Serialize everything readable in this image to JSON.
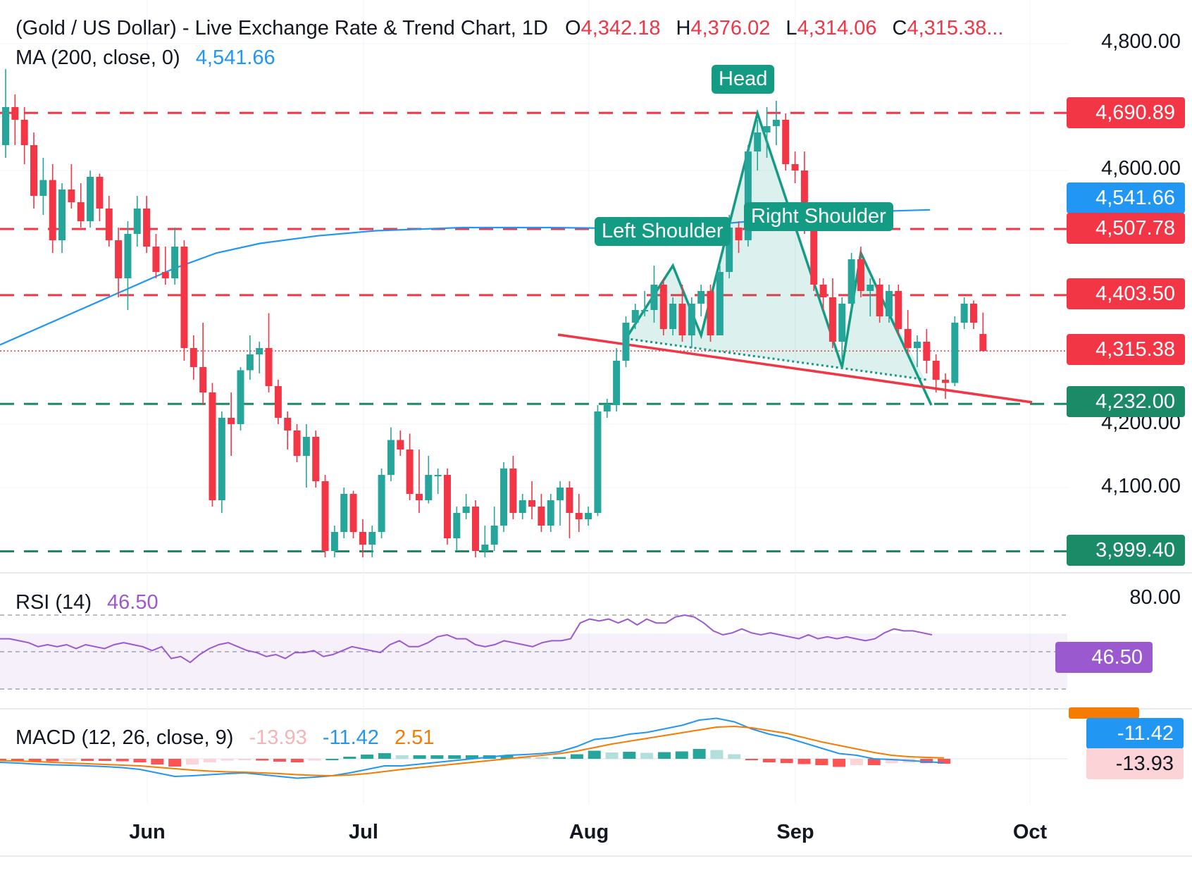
{
  "header": {
    "title": "(Gold / US Dollar) - Live Exchange Rate & Trend Chart, 1D",
    "o_label": "O",
    "o_value": "4,342.18",
    "h_label": "H",
    "h_value": "4,376.02",
    "l_label": "L",
    "l_value": "4,314.06",
    "c_label": "C",
    "c_value": "4,315.38..."
  },
  "ma": {
    "label": "MA (200, close, 0)",
    "value": "4,541.66"
  },
  "rsi": {
    "label": "RSI (14)",
    "value": "46.50",
    "tick": "80.00",
    "tag": "46.50"
  },
  "macd": {
    "label": "MACD (12, 26, close, 9)",
    "hist": "-13.93",
    "macd": "-11.42",
    "signal": "2.51",
    "tag_macd": "-11.42",
    "tag_hist": "-13.93"
  },
  "price_axis": [
    "4,800.00",
    "4,600.00",
    "4,200.00",
    "4,100.00"
  ],
  "level_tags": [
    {
      "value": "4,690.89",
      "kind": "resistance"
    },
    {
      "value": "4,541.66",
      "kind": "ma"
    },
    {
      "value": "4,507.78",
      "kind": "resistance"
    },
    {
      "value": "4,403.50",
      "kind": "resistance"
    },
    {
      "value": "4,315.38",
      "kind": "last"
    },
    {
      "value": "4,232.00",
      "kind": "support"
    },
    {
      "value": "3,999.40",
      "kind": "support"
    }
  ],
  "months": [
    "Jun",
    "Jul",
    "Aug",
    "Sep",
    "Oct"
  ],
  "pattern_labels": {
    "head": "Head",
    "left": "Left Shoulder",
    "right": "Right Shoulder"
  },
  "colors": {
    "up": "#26a69a",
    "down": "#f23645",
    "ma": "#2196f3",
    "rsi": "#9b59d0",
    "signal": "#f57c00",
    "pattern": "#149b84"
  },
  "chart_data": {
    "type": "candlestick",
    "symbol": "Gold / US Dollar",
    "timeframe": "1D",
    "ylim": [
      3985,
      4835
    ],
    "horizontal_levels": [
      4690.89,
      4507.78,
      4403.5,
      4232.0,
      3999.4
    ],
    "ma200": [
      [
        0,
        4325
      ],
      [
        20,
        4365
      ],
      [
        40,
        4405
      ],
      [
        60,
        4445
      ],
      [
        75,
        4470
      ],
      [
        90,
        4485
      ],
      [
        110,
        4497
      ],
      [
        130,
        4505
      ],
      [
        160,
        4510
      ],
      [
        190,
        4510
      ],
      [
        210,
        4509
      ],
      [
        225,
        4509
      ],
      [
        240,
        4512
      ],
      [
        260,
        4520
      ],
      [
        280,
        4530
      ],
      [
        300,
        4535
      ],
      [
        322,
        4538
      ]
    ],
    "candles": [
      {
        "o": 4640,
        "h": 4760,
        "l": 4620,
        "c": 4700
      },
      {
        "o": 4700,
        "h": 4720,
        "l": 4640,
        "c": 4680
      },
      {
        "o": 4680,
        "h": 4700,
        "l": 4610,
        "c": 4640
      },
      {
        "o": 4640,
        "h": 4660,
        "l": 4540,
        "c": 4560
      },
      {
        "o": 4560,
        "h": 4620,
        "l": 4530,
        "c": 4585
      },
      {
        "o": 4585,
        "h": 4610,
        "l": 4470,
        "c": 4490
      },
      {
        "o": 4490,
        "h": 4580,
        "l": 4470,
        "c": 4570
      },
      {
        "o": 4570,
        "h": 4610,
        "l": 4540,
        "c": 4550
      },
      {
        "o": 4550,
        "h": 4580,
        "l": 4510,
        "c": 4520
      },
      {
        "o": 4520,
        "h": 4600,
        "l": 4510,
        "c": 4590
      },
      {
        "o": 4590,
        "h": 4595,
        "l": 4520,
        "c": 4540
      },
      {
        "o": 4540,
        "h": 4560,
        "l": 4480,
        "c": 4490
      },
      {
        "o": 4490,
        "h": 4510,
        "l": 4400,
        "c": 4430
      },
      {
        "o": 4430,
        "h": 4520,
        "l": 4380,
        "c": 4500
      },
      {
        "o": 4500,
        "h": 4560,
        "l": 4480,
        "c": 4540
      },
      {
        "o": 4540,
        "h": 4560,
        "l": 4470,
        "c": 4480
      },
      {
        "o": 4480,
        "h": 4500,
        "l": 4430,
        "c": 4440
      },
      {
        "o": 4440,
        "h": 4480,
        "l": 4420,
        "c": 4430
      },
      {
        "o": 4430,
        "h": 4510,
        "l": 4420,
        "c": 4480
      },
      {
        "o": 4480,
        "h": 4490,
        "l": 4300,
        "c": 4320
      },
      {
        "o": 4320,
        "h": 4340,
        "l": 4270,
        "c": 4290
      },
      {
        "o": 4290,
        "h": 4360,
        "l": 4230,
        "c": 4250
      },
      {
        "o": 4250,
        "h": 4265,
        "l": 4070,
        "c": 4080
      },
      {
        "o": 4080,
        "h": 4220,
        "l": 4060,
        "c": 4210
      },
      {
        "o": 4210,
        "h": 4250,
        "l": 4150,
        "c": 4200
      },
      {
        "o": 4200,
        "h": 4290,
        "l": 4190,
        "c": 4285
      },
      {
        "o": 4285,
        "h": 4340,
        "l": 4270,
        "c": 4310
      },
      {
        "o": 4310,
        "h": 4330,
        "l": 4280,
        "c": 4320
      },
      {
        "o": 4320,
        "h": 4375,
        "l": 4250,
        "c": 4260
      },
      {
        "o": 4260,
        "h": 4270,
        "l": 4200,
        "c": 4210
      },
      {
        "o": 4210,
        "h": 4220,
        "l": 4160,
        "c": 4190
      },
      {
        "o": 4190,
        "h": 4200,
        "l": 4140,
        "c": 4150
      },
      {
        "o": 4150,
        "h": 4200,
        "l": 4100,
        "c": 4180
      },
      {
        "o": 4180,
        "h": 4190,
        "l": 4100,
        "c": 4110
      },
      {
        "o": 4110,
        "h": 4120,
        "l": 3990,
        "c": 4000
      },
      {
        "o": 4000,
        "h": 4040,
        "l": 3990,
        "c": 4030
      },
      {
        "o": 4030,
        "h": 4100,
        "l": 4020,
        "c": 4090
      },
      {
        "o": 4090,
        "h": 4095,
        "l": 4020,
        "c": 4030
      },
      {
        "o": 4030,
        "h": 4050,
        "l": 3990,
        "c": 4010
      },
      {
        "o": 4010,
        "h": 4040,
        "l": 3990,
        "c": 4030
      },
      {
        "o": 4030,
        "h": 4130,
        "l": 4020,
        "c": 4120
      },
      {
        "o": 4120,
        "h": 4195,
        "l": 4110,
        "c": 4175
      },
      {
        "o": 4175,
        "h": 4190,
        "l": 4150,
        "c": 4160
      },
      {
        "o": 4160,
        "h": 4185,
        "l": 4080,
        "c": 4090
      },
      {
        "o": 4090,
        "h": 4160,
        "l": 4060,
        "c": 4080
      },
      {
        "o": 4080,
        "h": 4150,
        "l": 4075,
        "c": 4120
      },
      {
        "o": 4120,
        "h": 4130,
        "l": 4090,
        "c": 4120
      },
      {
        "o": 4120,
        "h": 4130,
        "l": 4010,
        "c": 4020
      },
      {
        "o": 4020,
        "h": 4070,
        "l": 4000,
        "c": 4060
      },
      {
        "o": 4060,
        "h": 4090,
        "l": 4050,
        "c": 4070
      },
      {
        "o": 4070,
        "h": 4080,
        "l": 3990,
        "c": 4000
      },
      {
        "o": 4000,
        "h": 4040,
        "l": 3990,
        "c": 4010
      },
      {
        "o": 4010,
        "h": 4070,
        "l": 4000,
        "c": 4040
      },
      {
        "o": 4040,
        "h": 4140,
        "l": 4030,
        "c": 4130
      },
      {
        "o": 4130,
        "h": 4150,
        "l": 4050,
        "c": 4060
      },
      {
        "o": 4060,
        "h": 4090,
        "l": 4050,
        "c": 4080
      },
      {
        "o": 4080,
        "h": 4110,
        "l": 4050,
        "c": 4070
      },
      {
        "o": 4070,
        "h": 4090,
        "l": 4030,
        "c": 4040
      },
      {
        "o": 4040,
        "h": 4090,
        "l": 4030,
        "c": 4080
      },
      {
        "o": 4080,
        "h": 4110,
        "l": 4040,
        "c": 4100
      },
      {
        "o": 4100,
        "h": 4110,
        "l": 4020,
        "c": 4060
      },
      {
        "o": 4060,
        "h": 4090,
        "l": 4030,
        "c": 4050
      },
      {
        "o": 4050,
        "h": 4070,
        "l": 4040,
        "c": 4060
      },
      {
        "o": 4060,
        "h": 4230,
        "l": 4055,
        "c": 4220
      },
      {
        "o": 4220,
        "h": 4240,
        "l": 4210,
        "c": 4230
      },
      {
        "o": 4230,
        "h": 4320,
        "l": 4220,
        "c": 4300
      },
      {
        "o": 4300,
        "h": 4370,
        "l": 4290,
        "c": 4360
      },
      {
        "o": 4360,
        "h": 4390,
        "l": 4350,
        "c": 4380
      },
      {
        "o": 4380,
        "h": 4410,
        "l": 4370,
        "c": 4380
      },
      {
        "o": 4380,
        "h": 4450,
        "l": 4360,
        "c": 4420
      },
      {
        "o": 4420,
        "h": 4430,
        "l": 4340,
        "c": 4350
      },
      {
        "o": 4350,
        "h": 4400,
        "l": 4340,
        "c": 4390
      },
      {
        "o": 4390,
        "h": 4420,
        "l": 4330,
        "c": 4340
      },
      {
        "o": 4340,
        "h": 4400,
        "l": 4320,
        "c": 4390
      },
      {
        "o": 4390,
        "h": 4420,
        "l": 4370,
        "c": 4410
      },
      {
        "o": 4410,
        "h": 4420,
        "l": 4330,
        "c": 4340
      },
      {
        "o": 4340,
        "h": 4450,
        "l": 4340,
        "c": 4440
      },
      {
        "o": 4440,
        "h": 4530,
        "l": 4430,
        "c": 4510
      },
      {
        "o": 4510,
        "h": 4520,
        "l": 4470,
        "c": 4490
      },
      {
        "o": 4490,
        "h": 4640,
        "l": 4480,
        "c": 4630
      },
      {
        "o": 4630,
        "h": 4680,
        "l": 4600,
        "c": 4660
      },
      {
        "o": 4660,
        "h": 4700,
        "l": 4620,
        "c": 4670
      },
      {
        "o": 4670,
        "h": 4710,
        "l": 4640,
        "c": 4680
      },
      {
        "o": 4680,
        "h": 4690,
        "l": 4600,
        "c": 4610
      },
      {
        "o": 4610,
        "h": 4630,
        "l": 4580,
        "c": 4600
      },
      {
        "o": 4600,
        "h": 4630,
        "l": 4500,
        "c": 4510
      },
      {
        "o": 4510,
        "h": 4520,
        "l": 4410,
        "c": 4420
      },
      {
        "o": 4420,
        "h": 4430,
        "l": 4380,
        "c": 4400
      },
      {
        "o": 4400,
        "h": 4430,
        "l": 4320,
        "c": 4330
      },
      {
        "o": 4330,
        "h": 4400,
        "l": 4300,
        "c": 4390
      },
      {
        "o": 4390,
        "h": 4470,
        "l": 4380,
        "c": 4460
      },
      {
        "o": 4460,
        "h": 4480,
        "l": 4400,
        "c": 4410
      },
      {
        "o": 4410,
        "h": 4430,
        "l": 4370,
        "c": 4420
      },
      {
        "o": 4420,
        "h": 4430,
        "l": 4360,
        "c": 4370
      },
      {
        "o": 4370,
        "h": 4420,
        "l": 4360,
        "c": 4410
      },
      {
        "o": 4410,
        "h": 4420,
        "l": 4340,
        "c": 4350
      },
      {
        "o": 4350,
        "h": 4380,
        "l": 4310,
        "c": 4320
      },
      {
        "o": 4320,
        "h": 4340,
        "l": 4290,
        "c": 4330
      },
      {
        "o": 4330,
        "h": 4350,
        "l": 4280,
        "c": 4300
      },
      {
        "o": 4300,
        "h": 4310,
        "l": 4250,
        "c": 4270
      },
      {
        "o": 4270,
        "h": 4280,
        "l": 4240,
        "c": 4265
      },
      {
        "o": 4265,
        "h": 4370,
        "l": 4260,
        "c": 4360
      },
      {
        "o": 4360,
        "h": 4400,
        "l": 4350,
        "c": 4390
      },
      {
        "o": 4390,
        "h": 4395,
        "l": 4350,
        "c": 4360
      },
      {
        "o": 4342.18,
        "h": 4376.02,
        "l": 4314.06,
        "c": 4315.38
      }
    ],
    "rsi": [
      64,
      64,
      63,
      62,
      60,
      61,
      60,
      61,
      59,
      61,
      60,
      59,
      61,
      62,
      61,
      60,
      58,
      60,
      54,
      55,
      52,
      56,
      59,
      61,
      62,
      60,
      58,
      57,
      55,
      56,
      54,
      57,
      57,
      58,
      55,
      56,
      58,
      60,
      59,
      58,
      57,
      61,
      63,
      60,
      60,
      62,
      65,
      66,
      64,
      64,
      61,
      60,
      61,
      63,
      62,
      61,
      60,
      62,
      63,
      63,
      64,
      72,
      74,
      73,
      74,
      72,
      74,
      71,
      74,
      72,
      72,
      75,
      76,
      75,
      72,
      68,
      66,
      67,
      69,
      67,
      66,
      67,
      66,
      65,
      64,
      66,
      64,
      65,
      64,
      65,
      64,
      63,
      64,
      67,
      69,
      68,
      68,
      67,
      66
    ],
    "macd_line": [
      -10,
      -12,
      -15,
      -17,
      -18,
      -20,
      -22,
      -25,
      -30,
      -40,
      -50,
      -48,
      -45,
      -42,
      -40,
      -45,
      -50,
      -55,
      -52,
      -48,
      -40,
      -30,
      -20,
      -20,
      -15,
      -10,
      -5,
      0,
      5,
      10,
      12,
      15,
      20,
      35,
      55,
      60,
      70,
      75,
      85,
      95,
      110,
      115,
      105,
      85,
      70,
      60,
      45,
      30,
      15,
      10,
      0,
      -2,
      -5,
      -8,
      -11.42
    ],
    "signal_line": [
      -5,
      -6,
      -8,
      -10,
      -12,
      -14,
      -16,
      -18,
      -20,
      -24,
      -28,
      -32,
      -35,
      -37,
      -38,
      -40,
      -42,
      -45,
      -47,
      -48,
      -46,
      -42,
      -36,
      -30,
      -25,
      -20,
      -15,
      -10,
      -5,
      0,
      5,
      10,
      15,
      22,
      32,
      42,
      50,
      58,
      66,
      74,
      82,
      90,
      92,
      88,
      80,
      72,
      60,
      48,
      38,
      28,
      18,
      10,
      6,
      4,
      2.51
    ],
    "macd_hist": [
      -5,
      -6,
      -7,
      -7,
      -6,
      -6,
      -6,
      -7,
      -10,
      -16,
      -22,
      -16,
      -10,
      -5,
      -2,
      -5,
      -8,
      -10,
      -5,
      0,
      6,
      12,
      16,
      10,
      10,
      10,
      10,
      10,
      10,
      10,
      7,
      5,
      5,
      13,
      23,
      18,
      20,
      17,
      19,
      21,
      28,
      25,
      13,
      -3,
      -10,
      -12,
      -15,
      -18,
      -23,
      -18,
      -18,
      -12,
      -11,
      -12,
      -13.93
    ]
  }
}
